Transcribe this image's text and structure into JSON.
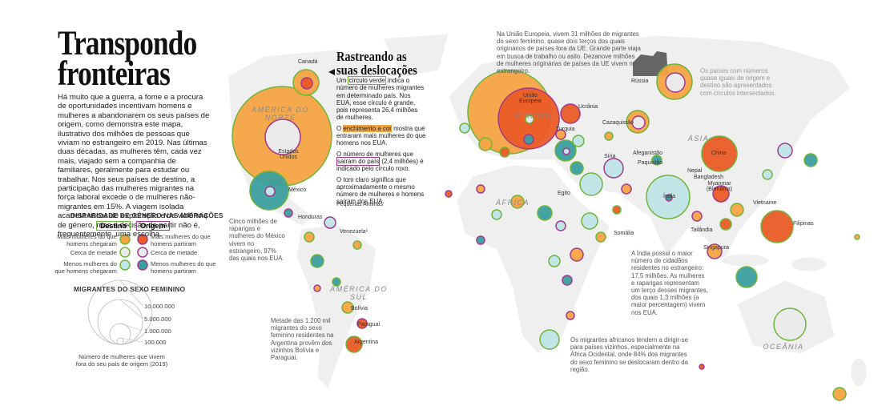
{
  "header": {
    "title_lines": [
      "Transpondo",
      "fronteiras"
    ],
    "intro": "Há muito que a guerra, a fome e a procura de oportunidades incentivam homens e mulheres a abandonarem os seus países de origem, como demonstra este mapa, ilustrativo dos milhões de pessoas que viviam no estrangeiro em 2019. Nas últimas duas décadas, as mulheres têm, cada vez mais, viajado sem a companhia de familiares, geralmente para estudar ou trabalhar. Nos seus países de destino, a participação das mulheres migrantes na força laboral excede o de mulheres não-migrantes em 15%. A viagem isolada acarreta riscos de exploração e de violência de género, mas a decisão de partir não é, frequentemente, uma escolha."
  },
  "legend": {
    "title": "DISPARIDADE DE GÉNERO NAS MIGRAÇÕES",
    "destination": "Destino",
    "origin": "Origem",
    "rows": [
      {
        "destination": "Mais mulheres do que homens chegaram",
        "origin": "Mais mulheres do que homens partiram"
      },
      {
        "destination": "Cerca de metade",
        "origin": "Cerca de metade"
      },
      {
        "destination": "Menos mulheres do que homens chegaram",
        "origin": "Menos mulheres do que homens partiram"
      }
    ]
  },
  "size_legend": {
    "title": "MIGRANTES DO SEXO FEMININO",
    "ticks": [
      "10.000.000",
      "5.000.000",
      "1.000.000",
      "100.000"
    ],
    "caption": "Número de mulheres que vivem fora do seu país de origem (2019)"
  },
  "sidebar": {
    "title_lines": [
      "Rastreando as",
      "suas deslocações"
    ],
    "paragraphs": [
      [
        "Um ",
        "círculo verde",
        " indica o número de mulheres migrantes em determinado país. Nos EUA, esse círculo é grande, pois representa 26,4 milhões de mulheres."
      ],
      [
        "O ",
        "enchimento a cor",
        " mostra que entraram mais mulheres do que homens nos EUA."
      ],
      [
        "O número de mulheres que ",
        "saíram do país",
        " (2,4 milhões) é indicado pelo círculo roxo."
      ],
      [
        "O tom claro significa que aproximadamente o mesmo número de mulheres e homens saíram dos EUA."
      ]
    ]
  },
  "annotations": {
    "eu": "Na União Europeia, vivem 31 milhões de migrantes do sexo feminino, quase dois terços dos quais originários de países fora da UE. Grande parte viaja em busca de trabalho ou asilo. Dezanove milhões de mulheres originárias de países da UE vivem no estrangeiro.",
    "equal": "Os países com números quase iguais de origem e destino são apresentados com círculos intersectados.",
    "mexico": "Cinco milhões de raparigas e mulheres do México vivem no estrangeiro, 97% das quais nos EUA.",
    "argentina": "Metade das 1.200 mil migrantes do sexo feminino residentes na Argentina provêm dos vizinhos Bolívia e Paraguai.",
    "india": "A Índia possui o maior número de cidadãos residentes no estrangeiro: 17,5 milhões. As mulheres e raparigas representam um terço desses migrantes, dos quais 1,3 milhões (a maior percentagem) vivem nos EUA.",
    "africa": "Os migrantes africanos tendem a dirigir-se para países vizinhos, especialmente na África Ocidental, onde 84% dos migrantes do sexo feminino se deslocaram dentro da região."
  },
  "regions": [
    "AMÉRICA DO NORTE",
    "AMÉRICA DO SUL",
    "EUROPA",
    "ÁFRICA",
    "ÁSIA",
    "OCEÂNIA"
  ],
  "countries": [
    "Canadá",
    "Estados Unidos",
    "México",
    "Honduras",
    "Pequenas Antilhas",
    "Venezuela¹",
    "Bolívia",
    "Paraguai",
    "Argentina",
    "Rússia",
    "União Europeia",
    "Ucrânia",
    "Cazaquistão",
    "Turquia",
    "Síria",
    "Egito",
    "Afeganistão",
    "Paquistão",
    "Nepal",
    "Bangladesh",
    "Myanmar (Birmânia)",
    "Índia",
    "China",
    "Vietname",
    "Tailândia",
    "Filipinas",
    "Singapura",
    "Somália"
  ]
}
